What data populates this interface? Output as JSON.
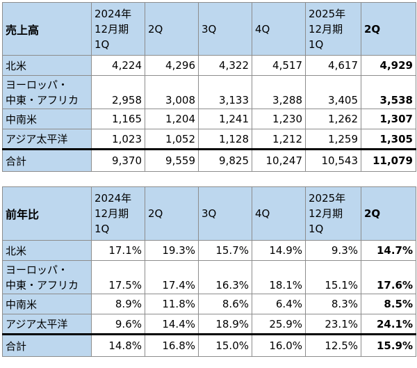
{
  "table1": {
    "title": "売上高",
    "headers": [
      "2024年\n12月期\n1Q",
      "2Q",
      "3Q",
      "4Q",
      "2025年\n12月期\n1Q",
      "2Q"
    ],
    "rows": [
      {
        "label": "北米",
        "values": [
          "4,224",
          "4,296",
          "4,322",
          "4,517",
          "4,617",
          "4,929"
        ]
      },
      {
        "label": "ヨーロッパ・\n中東・アフリカ",
        "values": [
          "2,958",
          "3,008",
          "3,133",
          "3,288",
          "3,405",
          "3,538"
        ]
      },
      {
        "label": "中南米",
        "values": [
          "1,165",
          "1,204",
          "1,241",
          "1,230",
          "1,262",
          "1,307"
        ]
      },
      {
        "label": "アジア太平洋",
        "values": [
          "1,023",
          "1,052",
          "1,128",
          "1,212",
          "1,259",
          "1,305"
        ]
      }
    ],
    "total": {
      "label": "合計",
      "values": [
        "9,370",
        "9,559",
        "9,825",
        "10,247",
        "10,543",
        "11,079"
      ]
    }
  },
  "table2": {
    "title": "前年比",
    "headers": [
      "2024年\n12月期\n1Q",
      "2Q",
      "3Q",
      "4Q",
      "2025年\n12月期\n1Q",
      "2Q"
    ],
    "rows": [
      {
        "label": "北米",
        "values": [
          "17.1%",
          "19.3%",
          "15.7%",
          "14.9%",
          "9.3%",
          "14.7%"
        ]
      },
      {
        "label": "ヨーロッパ・\n中東・アフリカ",
        "values": [
          "17.5%",
          "17.4%",
          "16.3%",
          "18.1%",
          "15.1%",
          "17.6%"
        ]
      },
      {
        "label": "中南米",
        "values": [
          "8.9%",
          "11.8%",
          "8.6%",
          "6.4%",
          "8.3%",
          "8.5%"
        ]
      },
      {
        "label": "アジア太平洋",
        "values": [
          "9.6%",
          "14.4%",
          "18.9%",
          "25.9%",
          "23.1%",
          "24.1%"
        ]
      }
    ],
    "total": {
      "label": "合計",
      "values": [
        "14.8%",
        "16.8%",
        "15.0%",
        "16.0%",
        "12.5%",
        "15.9%"
      ]
    }
  }
}
